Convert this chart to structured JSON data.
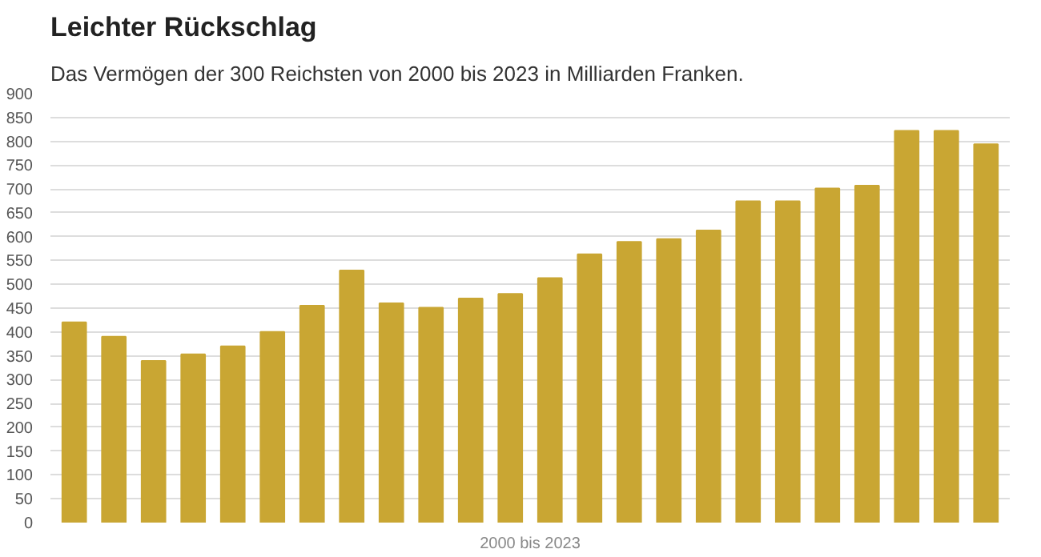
{
  "chart_data": {
    "type": "bar",
    "title": "Leichter Rückschlag",
    "subtitle": "Das Vermögen der 300 Reichsten von 2000 bis 2023 in Milliarden Franken.",
    "xlabel": "2000 bis 2023",
    "categories": [
      null,
      null,
      null,
      null,
      null,
      null,
      null,
      null,
      null,
      null,
      null,
      null,
      null,
      null,
      null,
      null,
      null,
      null,
      null,
      null,
      null,
      null,
      null,
      null
    ],
    "values": [
      420,
      390,
      339,
      353,
      370,
      400,
      455,
      529,
      460,
      451,
      470,
      480,
      513,
      563,
      589,
      595,
      613,
      674,
      674,
      701,
      707,
      822,
      822,
      794
    ],
    "color": "#c9a633",
    "ylim": [
      0,
      900
    ],
    "yticks": [
      0,
      50,
      100,
      150,
      200,
      250,
      300,
      350,
      400,
      450,
      500,
      550,
      600,
      650,
      700,
      750,
      800,
      850,
      900
    ],
    "grid": "y",
    "tick_labels": "y"
  }
}
